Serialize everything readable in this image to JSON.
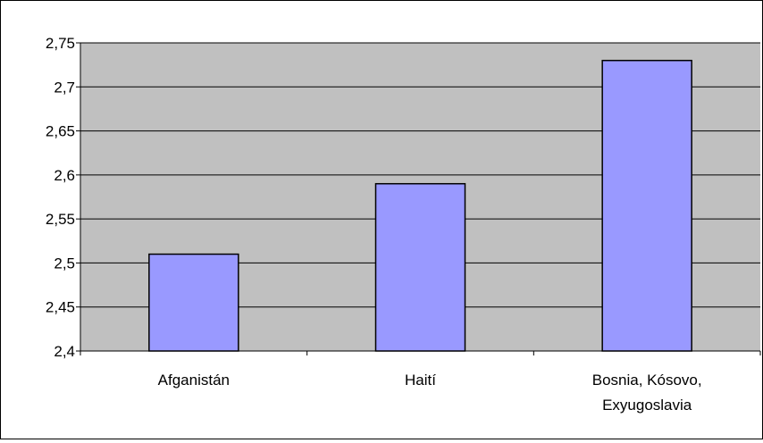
{
  "colors": {
    "plot_background": "#c0c0c0",
    "bar_fill": "#9999ff",
    "bar_stroke": "#000000",
    "gridline": "#000000"
  },
  "chart_data": {
    "type": "bar",
    "categories": [
      [
        "Afganistán"
      ],
      [
        "Haití"
      ],
      [
        "Bosnia, Kósovo,",
        "Exyugoslavia"
      ]
    ],
    "values": [
      2.51,
      2.59,
      2.73
    ],
    "ylim": [
      2.4,
      2.75
    ],
    "yticks": [
      "2,4",
      "2,45",
      "2,5",
      "2,55",
      "2,6",
      "2,65",
      "2,7",
      "2,75"
    ],
    "grid": true,
    "legend": false
  }
}
